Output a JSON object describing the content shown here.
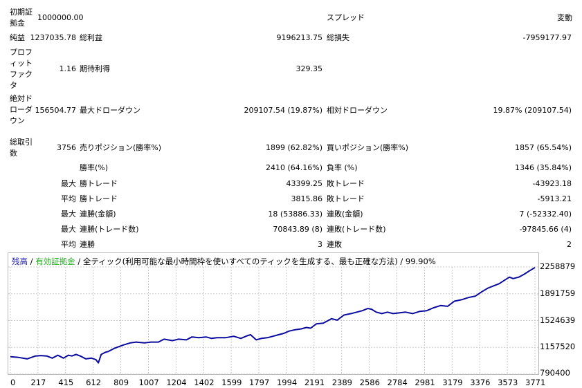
{
  "report": {
    "initial_deposit_label": "初期証拠金",
    "initial_deposit_value": "1000000.00",
    "spread_label": "スプレッド",
    "spread_value": "変動",
    "net_profit_label": "純益",
    "net_profit_value": "1237035.78",
    "gross_profit_label": "総利益",
    "gross_profit_value": "9196213.75",
    "gross_loss_label": "総損失",
    "gross_loss_value": "-7959177.97",
    "profit_factor_label": "プロフィットファクタ",
    "profit_factor_value": "1.16",
    "expected_payoff_label": "期待利得",
    "expected_payoff_value": "329.35",
    "abs_drawdown_label": "絶対ドローダウン",
    "abs_drawdown_value": "156504.77",
    "max_drawdown_label": "最大ドローダウン",
    "max_drawdown_value": "209107.54 (19.87%)",
    "rel_drawdown_label": "相対ドローダウン",
    "rel_drawdown_value": "19.87% (209107.54)",
    "total_trades_label": "総取引数",
    "total_trades_value": "3756",
    "short_positions_label": "売りポジション(勝率%)",
    "short_positions_value": "1899 (62.82%)",
    "long_positions_label": "買いポジション(勝率%)",
    "long_positions_value": "1857 (65.54%)",
    "win_rate_label": "勝率(%)",
    "win_rate_value": "2410 (64.16%)",
    "loss_rate_label": "負率 (%)",
    "loss_rate_value": "1346 (35.84%)",
    "max_prefix": "最大",
    "avg_prefix": "平均",
    "max_win_trade_label": "勝トレード",
    "max_win_trade_value": "43399.25",
    "max_loss_trade_label": "敗トレード",
    "max_loss_trade_value": "-43923.18",
    "avg_win_trade_label": "勝トレード",
    "avg_win_trade_value": "3815.86",
    "avg_loss_trade_label": "敗トレード",
    "avg_loss_trade_value": "-5913.21",
    "max_consec_wins_amount_label": "連勝(金額)",
    "max_consec_wins_amount_value": "18 (53886.33)",
    "max_consec_losses_amount_label": "連敗(金額)",
    "max_consec_losses_amount_value": "7 (-52332.40)",
    "max_consec_wins_trades_label": "連勝(トレード数)",
    "max_consec_wins_trades_value": "70843.89 (8)",
    "max_consec_losses_trades_label": "連敗(トレード数)",
    "max_consec_losses_trades_value": "-97845.66 (4)",
    "avg_consec_wins_label": "連勝",
    "avg_consec_wins_value": "3",
    "avg_consec_losses_label": "連敗",
    "avg_consec_losses_value": "2"
  },
  "legend": {
    "balance": "残高",
    "sep1": " / ",
    "equity": "有効証拠金",
    "sep2": " / ",
    "model": "全ティック(利用可能な最小時間枠を使いすべてのティックを生成する、最も正確な方法)",
    "sep3": " / ",
    "quality": "99.90%"
  },
  "colors": {
    "balance": "#1a1aa8",
    "equity": "#22a822",
    "line": "#0a0a9e",
    "grid": "#c8c8c8"
  },
  "chart_data": {
    "type": "line",
    "title": "",
    "xlabel": "",
    "ylabel": "",
    "grid": true,
    "xlim": [
      0,
      3756
    ],
    "ylim": [
      790400,
      2258879
    ],
    "x_ticks": [
      "0",
      "217",
      "415",
      "612",
      "809",
      "1007",
      "1204",
      "1402",
      "1599",
      "1797",
      "1994",
      "2191",
      "2389",
      "2586",
      "2784",
      "2981",
      "3179",
      "3376",
      "3573",
      "3771"
    ],
    "y_ticks": [
      "2258879",
      "1891759",
      "1524639",
      "1157520",
      "790400"
    ],
    "series": [
      {
        "x": [
          0,
          60,
          120,
          180,
          217,
          260,
          300,
          340,
          380,
          415,
          440,
          470,
          500,
          540,
          580,
          612,
          630,
          650,
          680,
          700,
          740,
          780,
          809,
          860,
          900,
          960,
          1007,
          1060,
          1100,
          1160,
          1204,
          1260,
          1300,
          1350,
          1402,
          1440,
          1480,
          1540,
          1599,
          1650,
          1700,
          1720,
          1760,
          1797,
          1840,
          1880,
          1920,
          1960,
          1994,
          2040,
          2080,
          2120,
          2150,
          2191,
          2240,
          2300,
          2340,
          2389,
          2440,
          2480,
          2520,
          2560,
          2586,
          2620,
          2660,
          2700,
          2740,
          2784,
          2830,
          2880,
          2930,
          2981,
          3030,
          3080,
          3130,
          3179,
          3230,
          3280,
          3330,
          3376,
          3420,
          3460,
          3500,
          3540,
          3573,
          3600,
          3640,
          3680,
          3720,
          3756
        ],
        "y": [
          1030000,
          1020000,
          1000000,
          1040000,
          1045000,
          1040000,
          1010000,
          1050000,
          1010000,
          1050000,
          1040000,
          1060000,
          1040000,
          1000000,
          1010000,
          990000,
          945000,
          1060000,
          1090000,
          1100000,
          1140000,
          1170000,
          1190000,
          1220000,
          1230000,
          1220000,
          1230000,
          1230000,
          1270000,
          1250000,
          1270000,
          1260000,
          1300000,
          1290000,
          1300000,
          1280000,
          1290000,
          1290000,
          1310000,
          1280000,
          1320000,
          1330000,
          1260000,
          1280000,
          1290000,
          1310000,
          1330000,
          1350000,
          1380000,
          1400000,
          1410000,
          1430000,
          1420000,
          1480000,
          1490000,
          1550000,
          1530000,
          1600000,
          1620000,
          1640000,
          1660000,
          1690000,
          1680000,
          1640000,
          1620000,
          1640000,
          1620000,
          1630000,
          1640000,
          1620000,
          1650000,
          1660000,
          1700000,
          1730000,
          1720000,
          1790000,
          1810000,
          1840000,
          1860000,
          1920000,
          1970000,
          2000000,
          2030000,
          2080000,
          2120000,
          2100000,
          2120000,
          2160000,
          2210000,
          2250000
        ]
      }
    ]
  }
}
